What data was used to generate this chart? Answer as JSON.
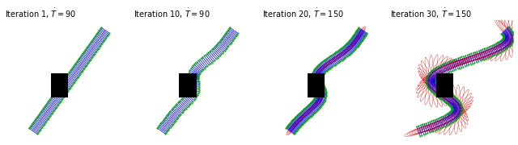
{
  "titles": [
    "Iteration 1, $\\dot{T} = 90$",
    "Iteration 10, $\\dot{T} = 90$",
    "Iteration 20, $\\dot{T} = 150$",
    "Iteration 30, $\\dot{T} = 150$"
  ],
  "background": "#ffffff",
  "obstacle_color": "#000000",
  "blue": "#0000ee",
  "red": "#dd0000",
  "green": "#00aa00",
  "title_fontsize": 7,
  "figsize": [
    6.4,
    1.8
  ],
  "dpi": 100
}
